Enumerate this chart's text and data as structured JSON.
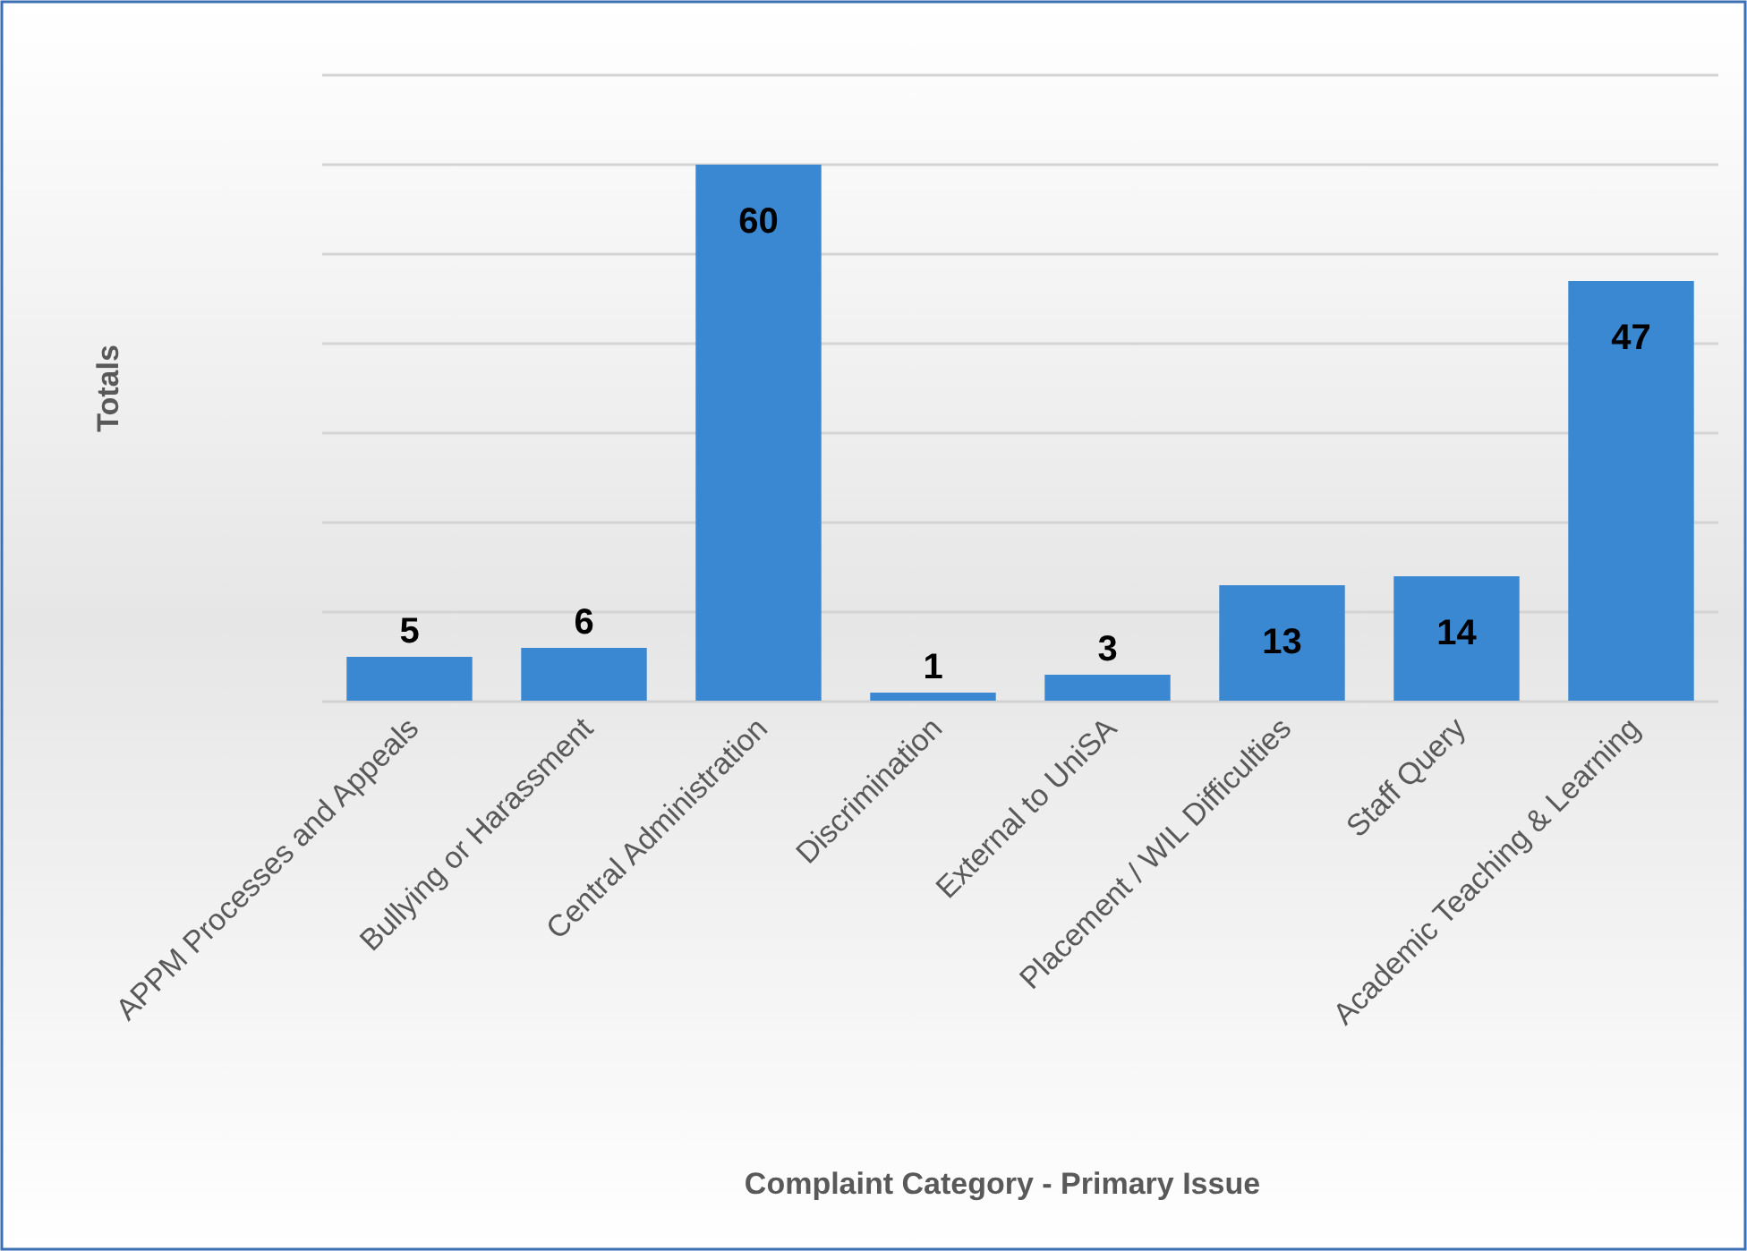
{
  "chart_data": {
    "type": "bar",
    "xlabel": "Complaint Category - Primary Issue",
    "ylabel": "Totals",
    "categories": [
      "APPM Processes and Appeals",
      "Bullying or Harassment",
      "Central Administration",
      "Discrimination",
      "External to UniSA",
      "Placement / WIL Difficulties",
      "Staff Query",
      "Academic Teaching & Learning"
    ],
    "values": [
      5,
      6,
      60,
      1,
      3,
      13,
      14,
      47
    ],
    "color": "#3a88d2",
    "ylim": [
      0,
      70
    ],
    "yticks": [
      {
        "value": 0,
        "label": null
      },
      {
        "value": 10,
        "label": null
      },
      {
        "value": 20,
        "label": null
      },
      {
        "value": 30,
        "label": null
      },
      {
        "value": 40,
        "label": null
      },
      {
        "value": 50,
        "label": null
      },
      {
        "value": 60,
        "label": null
      },
      {
        "value": 70,
        "label": null
      }
    ],
    "grid": true,
    "data_labels": true,
    "tick_labels": "x"
  }
}
